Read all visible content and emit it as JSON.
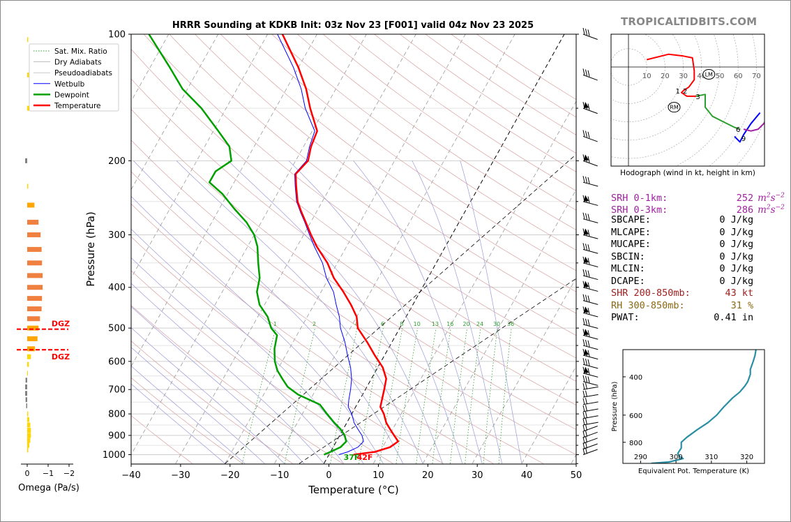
{
  "site": "TROPICALTIDBITS.COM",
  "title": "HRRR Sounding at KDKB Init: 03z Nov 23 [F001] valid 04z Nov 23 2025",
  "skewt": {
    "xlabel": "Temperature (°C)",
    "ylabel": "Pressure (hPa)",
    "xlim": [
      -40,
      50
    ],
    "ylim": [
      1050,
      100
    ],
    "xticks": [
      "−40",
      "−30",
      "−20",
      "−10",
      "0",
      "10",
      "20",
      "30",
      "40",
      "50"
    ],
    "yticks": [
      "100",
      "200",
      "300",
      "400",
      "500",
      "600",
      "700",
      "800",
      "900",
      "1000"
    ],
    "mixing_ratio_labels": [
      "1",
      "2",
      "4",
      "6",
      "8",
      "10",
      "13",
      "16",
      "20",
      "24",
      "30",
      "36"
    ],
    "surface_dewpoint_label": "37F",
    "surface_temp_label": "42F"
  },
  "legend": [
    {
      "label": "Sat. Mix. Ratio",
      "color": "#2ca02c"
    },
    {
      "label": "Dry Adiabats",
      "color": "#aaaaaa"
    },
    {
      "label": "Pseudoadiabats",
      "color": "#aaaaaa"
    },
    {
      "label": "Wetbulb",
      "color": "#0000ff"
    },
    {
      "label": "Dewpoint",
      "color": "#00a000"
    },
    {
      "label": "Temperature",
      "color": "#ff0000"
    }
  ],
  "omega": {
    "xlabel": "Omega (Pa/s)",
    "xticks": [
      "0",
      "−1",
      "−2"
    ],
    "dgz_label": "DGZ"
  },
  "hodograph": {
    "caption": "Hodograph (wind in kt, height in km)",
    "ring_labels": [
      "10",
      "20",
      "30",
      "40",
      "50",
      "60",
      "70"
    ],
    "height_labels": [
      "1",
      "2",
      "3",
      "6",
      "9"
    ],
    "lm_label": "LM",
    "rm_label": "RM"
  },
  "theta_e": {
    "xlabel": "Equivalent Pot. Temperature (K)",
    "ylabel": "Pressure (hPa)",
    "xticks": [
      "290",
      "300",
      "310",
      "320"
    ],
    "yticks": [
      "400",
      "600",
      "800"
    ]
  },
  "params": [
    {
      "label": "SRH 0-1km:",
      "value": "252",
      "unit": "m2s-2",
      "color": "#a020a0"
    },
    {
      "label": "SRH 0-3km:",
      "value": "286",
      "unit": "m2s-2",
      "color": "#a020a0"
    },
    {
      "label": "SBCAPE:",
      "value": "0 J/kg",
      "unit": "",
      "color": "#000000"
    },
    {
      "label": "MLCAPE:",
      "value": "0 J/kg",
      "unit": "",
      "color": "#000000"
    },
    {
      "label": "MUCAPE:",
      "value": "0 J/kg",
      "unit": "",
      "color": "#000000"
    },
    {
      "label": "SBCIN:",
      "value": "0 J/kg",
      "unit": "",
      "color": "#000000"
    },
    {
      "label": "MLCIN:",
      "value": "0 J/kg",
      "unit": "",
      "color": "#000000"
    },
    {
      "label": "DCAPE:",
      "value": "0 J/kg",
      "unit": "",
      "color": "#000000"
    },
    {
      "label": "SHR 200-850mb:",
      "value": "43 kt",
      "unit": "",
      "color": "#a02020"
    },
    {
      "label": "RH 300-850mb:",
      "value": "31 %",
      "unit": "",
      "color": "#8b6914"
    },
    {
      "label": "PWAT:",
      "value": "0.41 in",
      "unit": "",
      "color": "#000000"
    }
  ],
  "chart_data": [
    {
      "type": "line",
      "name": "skew-t",
      "series": [
        {
          "name": "Temperature",
          "color": "#ff0000",
          "points": [
            [
              1000,
              5
            ],
            [
              985,
              9
            ],
            [
              960,
              11.5
            ],
            [
              930,
              12.5
            ],
            [
              900,
              11
            ],
            [
              870,
              9.5
            ],
            [
              840,
              8
            ],
            [
              800,
              6.5
            ],
            [
              770,
              5
            ],
            [
              740,
              4.5
            ],
            [
              700,
              3.8
            ],
            [
              660,
              3
            ],
            [
              620,
              1
            ],
            [
              580,
              -2
            ],
            [
              540,
              -5
            ],
            [
              500,
              -8.5
            ],
            [
              470,
              -10
            ],
            [
              440,
              -12.5
            ],
            [
              410,
              -15.5
            ],
            [
              380,
              -19
            ],
            [
              350,
              -22
            ],
            [
              320,
              -26
            ],
            [
              300,
              -28.5
            ],
            [
              280,
              -31
            ],
            [
              265,
              -33
            ],
            [
              250,
              -35
            ],
            [
              230,
              -37
            ],
            [
              215,
              -38.5
            ],
            [
              200,
              -37.5
            ],
            [
              185,
              -38.5
            ],
            [
              170,
              -39
            ],
            [
              150,
              -43
            ],
            [
              135,
              -46
            ],
            [
              120,
              -50
            ],
            [
              100,
              -57
            ]
          ]
        },
        {
          "name": "Dewpoint",
          "color": "#00a000",
          "points": [
            [
              1000,
              -1
            ],
            [
              985,
              0
            ],
            [
              960,
              1.5
            ],
            [
              930,
              2
            ],
            [
              900,
              1
            ],
            [
              870,
              -0.5
            ],
            [
              840,
              -2.5
            ],
            [
              800,
              -5
            ],
            [
              760,
              -7.5
            ],
            [
              720,
              -13
            ],
            [
              690,
              -16
            ],
            [
              660,
              -18
            ],
            [
              630,
              -20
            ],
            [
              600,
              -21.5
            ],
            [
              560,
              -23
            ],
            [
              520,
              -24
            ],
            [
              500,
              -26
            ],
            [
              470,
              -28
            ],
            [
              440,
              -31
            ],
            [
              410,
              -33
            ],
            [
              380,
              -34
            ],
            [
              350,
              -36
            ],
            [
              320,
              -38
            ],
            [
              300,
              -40
            ],
            [
              280,
              -43
            ],
            [
              260,
              -47
            ],
            [
              240,
              -51
            ],
            [
              225,
              -55
            ],
            [
              212,
              -55
            ],
            [
              200,
              -53
            ],
            [
              185,
              -55
            ],
            [
              170,
              -59
            ],
            [
              150,
              -65
            ],
            [
              135,
              -71
            ],
            [
              120,
              -76
            ],
            [
              100,
              -84
            ]
          ]
        },
        {
          "name": "Wetbulb",
          "color": "#0000ff",
          "points": [
            [
              1000,
              2
            ],
            [
              985,
              3.5
            ],
            [
              960,
              5
            ],
            [
              930,
              5.5
            ],
            [
              900,
              4.5
            ],
            [
              870,
              3
            ],
            [
              840,
              1.5
            ],
            [
              800,
              0
            ],
            [
              770,
              -1.5
            ],
            [
              740,
              -2.2
            ],
            [
              700,
              -3
            ],
            [
              660,
              -4
            ],
            [
              620,
              -5.5
            ],
            [
              580,
              -7.5
            ],
            [
              540,
              -9.5
            ],
            [
              500,
              -12
            ],
            [
              470,
              -13.5
            ],
            [
              440,
              -15.5
            ],
            [
              410,
              -17.5
            ],
            [
              380,
              -20.5
            ],
            [
              350,
              -23
            ],
            [
              320,
              -26.5
            ],
            [
              300,
              -28.8
            ],
            [
              280,
              -31.2
            ],
            [
              265,
              -33.2
            ],
            [
              250,
              -35.2
            ],
            [
              230,
              -37.2
            ],
            [
              215,
              -38.7
            ],
            [
              200,
              -37.8
            ],
            [
              185,
              -38.8
            ],
            [
              170,
              -39.5
            ],
            [
              150,
              -44
            ],
            [
              135,
              -47
            ],
            [
              120,
              -51
            ],
            [
              100,
              -58
            ]
          ]
        }
      ]
    },
    {
      "type": "bar",
      "name": "omega",
      "xlim": [
        0.3,
        -2
      ],
      "bars": [
        {
          "p": 103,
          "v": -0.05,
          "c": "#ffd700"
        },
        {
          "p": 125,
          "v": -0.08,
          "c": "#ffd700"
        },
        {
          "p": 150,
          "v": -0.1,
          "c": "#ffd700"
        },
        {
          "p": 200,
          "v": 0.1,
          "c": "#808080"
        },
        {
          "p": 230,
          "v": -0.05,
          "c": "#ffd700"
        },
        {
          "p": 255,
          "v": -0.35,
          "c": "#ffa500"
        },
        {
          "p": 280,
          "v": -0.55,
          "c": "#f08040"
        },
        {
          "p": 300,
          "v": -0.65,
          "c": "#f08040"
        },
        {
          "p": 325,
          "v": -0.7,
          "c": "#f08040"
        },
        {
          "p": 350,
          "v": -0.72,
          "c": "#f08040"
        },
        {
          "p": 375,
          "v": -0.75,
          "c": "#f08040"
        },
        {
          "p": 400,
          "v": -0.75,
          "c": "#f08040"
        },
        {
          "p": 425,
          "v": -0.72,
          "c": "#f08040"
        },
        {
          "p": 450,
          "v": -0.7,
          "c": "#f08040"
        },
        {
          "p": 475,
          "v": -0.62,
          "c": "#f08040"
        },
        {
          "p": 500,
          "v": -0.55,
          "c": "#ffa500"
        },
        {
          "p": 530,
          "v": -0.5,
          "c": "#ffa500"
        },
        {
          "p": 560,
          "v": -0.38,
          "c": "#ffa500"
        },
        {
          "p": 585,
          "v": -0.18,
          "c": "#ffd700"
        },
        {
          "p": 610,
          "v": -0.08,
          "c": "#ffd700"
        },
        {
          "p": 640,
          "v": -0.02,
          "c": "#ffd700"
        },
        {
          "p": 665,
          "v": 0.08,
          "c": "#808080"
        },
        {
          "p": 690,
          "v": 0.1,
          "c": "#808080"
        },
        {
          "p": 715,
          "v": 0.1,
          "c": "#808080"
        },
        {
          "p": 740,
          "v": 0.08,
          "c": "#808080"
        },
        {
          "p": 765,
          "v": 0.05,
          "c": "#808080"
        },
        {
          "p": 800,
          "v": -0.05,
          "c": "#ffd700"
        },
        {
          "p": 825,
          "v": -0.1,
          "c": "#ffd700"
        },
        {
          "p": 850,
          "v": -0.15,
          "c": "#ffd700"
        },
        {
          "p": 875,
          "v": -0.18,
          "c": "#ffd700"
        },
        {
          "p": 900,
          "v": -0.18,
          "c": "#ffd700"
        },
        {
          "p": 925,
          "v": -0.15,
          "c": "#ffd700"
        },
        {
          "p": 950,
          "v": -0.1,
          "c": "#ffd700"
        },
        {
          "p": 975,
          "v": -0.05,
          "c": "#ffd700"
        }
      ],
      "dgz_pressures": [
        503,
        563
      ]
    },
    {
      "type": "line",
      "name": "hodograph",
      "segments": [
        {
          "color": "#ff0000",
          "points": [
            [
              10,
              4
            ],
            [
              22,
              7
            ],
            [
              30,
              6
            ],
            [
              35,
              5
            ],
            [
              36,
              -2
            ],
            [
              36,
              -7
            ],
            [
              33,
              -11
            ],
            [
              30,
              -13
            ],
            [
              29,
              -14
            ],
            [
              32,
              -16
            ],
            [
              37,
              -16
            ]
          ]
        },
        {
          "color": "#2ca02c",
          "points": [
            [
              37,
              -16
            ],
            [
              42,
              -15
            ],
            [
              42,
              -22
            ],
            [
              46,
              -27
            ],
            [
              52,
              -30
            ],
            [
              58,
              -33
            ],
            [
              61,
              -34
            ]
          ]
        },
        {
          "color": "#0000ff",
          "points": [
            [
              58,
              -38
            ],
            [
              61,
              -41
            ],
            [
              63,
              -37
            ],
            [
              67,
              -31
            ],
            [
              72,
              -25
            ]
          ]
        },
        {
          "color": "#a020a0",
          "points": [
            [
              63,
              -34
            ],
            [
              67,
              -35
            ],
            [
              71,
              -34
            ],
            [
              75,
              -30
            ]
          ]
        }
      ],
      "markers": {
        "LM": [
          44,
          -4
        ],
        "RM": [
          25,
          -22
        ]
      },
      "height_points": [
        [
          27,
          -13,
          "1"
        ],
        [
          31,
          -13,
          "2"
        ],
        [
          38,
          -16,
          "3"
        ],
        [
          60,
          -34,
          "6"
        ],
        [
          63,
          -39,
          "9"
        ]
      ]
    },
    {
      "type": "line",
      "name": "theta-e",
      "xlim": [
        285,
        325
      ],
      "ylim": [
        1000,
        300
      ],
      "points": [
        [
          1000,
          293
        ],
        [
          985,
          298
        ],
        [
          950,
          302
        ],
        [
          930,
          301
        ],
        [
          900,
          300.5
        ],
        [
          850,
          301.5
        ],
        [
          800,
          301.5
        ],
        [
          760,
          303
        ],
        [
          700,
          306
        ],
        [
          650,
          309
        ],
        [
          600,
          311.5
        ],
        [
          550,
          313.5
        ],
        [
          500,
          316
        ],
        [
          470,
          318
        ],
        [
          440,
          319.5
        ],
        [
          420,
          320.3
        ],
        [
          390,
          321
        ],
        [
          370,
          321
        ],
        [
          340,
          321.8
        ],
        [
          320,
          322.3
        ],
        [
          300,
          322.6
        ]
      ]
    }
  ]
}
